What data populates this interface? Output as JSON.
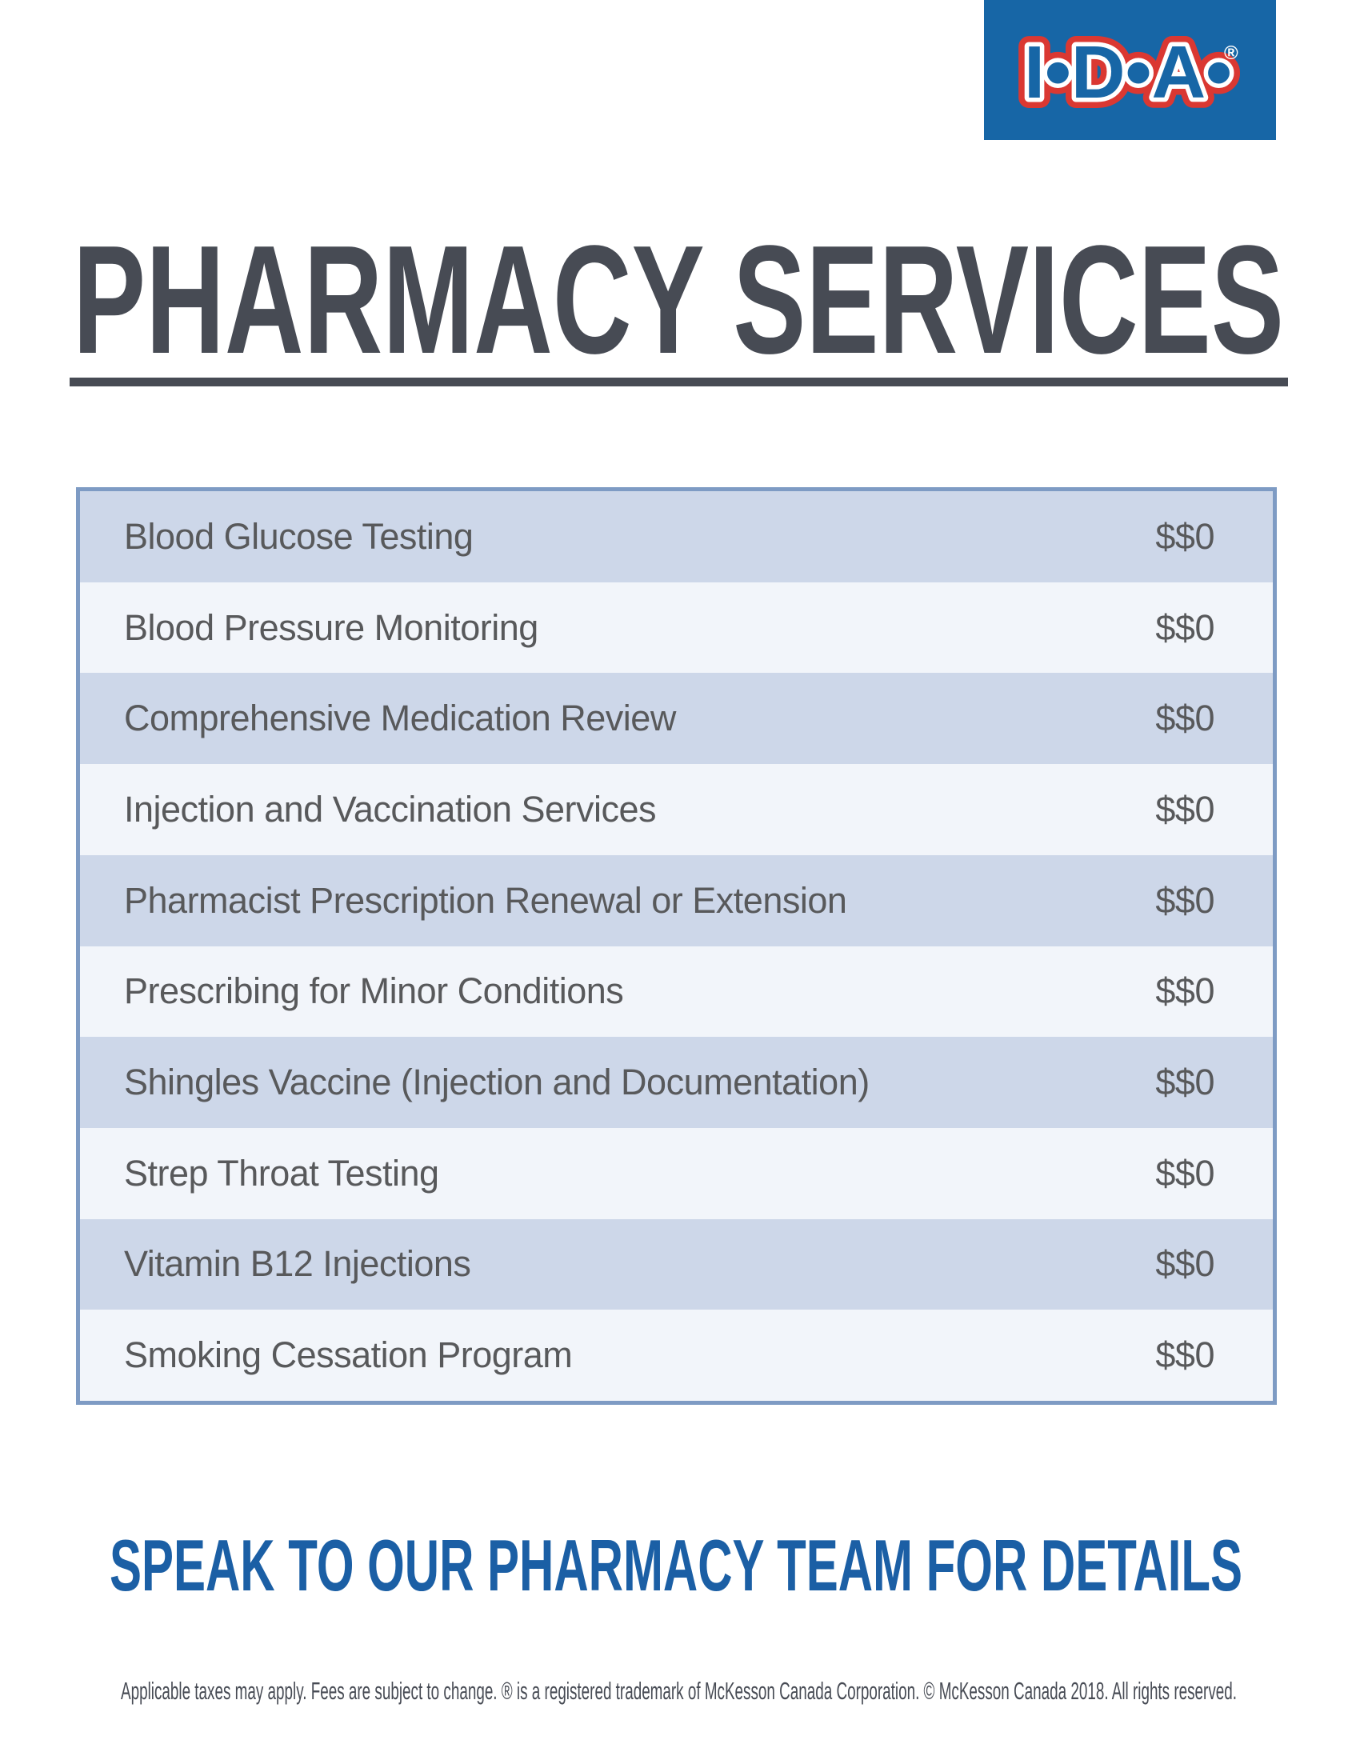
{
  "logo": {
    "brand": "I•D•A•",
    "registered": "®"
  },
  "page": {
    "title": "PHARMACY SERVICES",
    "cta": "SPEAK TO OUR PHARMACY TEAM FOR DETAILS",
    "disclaimer": "Applicable taxes may apply. Fees are subject to change. ® is a registered trademark of McKesson Canada Corporation. © McKesson Canada 2018. All rights reserved."
  },
  "services": {
    "rows": [
      {
        "name": "Blood Glucose Testing",
        "price": "$$0"
      },
      {
        "name": "Blood Pressure Monitoring",
        "price": "$$0"
      },
      {
        "name": "Comprehensive Medication Review",
        "price": "$$0"
      },
      {
        "name": "Injection and Vaccination Services",
        "price": "$$0"
      },
      {
        "name": "Pharmacist Prescription Renewal or Extension",
        "price": "$$0"
      },
      {
        "name": "Prescribing for Minor Conditions",
        "price": "$$0"
      },
      {
        "name": "Shingles Vaccine (Injection and Documentation)",
        "price": "$$0"
      },
      {
        "name": "Strep Throat Testing",
        "price": "$$0"
      },
      {
        "name": "Vitamin B12 Injections",
        "price": "$$0"
      },
      {
        "name": "Smoking Cessation Program",
        "price": "$$0"
      }
    ]
  },
  "colors": {
    "logo_blue": "#1766A6",
    "logo_red": "#DA3832",
    "heading_slate": "#474B54",
    "table_border": "#7E9BC4",
    "row_dark": "#CDD7E9",
    "row_light": "#F2F5FA",
    "row_text": "#58595B",
    "cta_blue": "#1B5FA5"
  }
}
